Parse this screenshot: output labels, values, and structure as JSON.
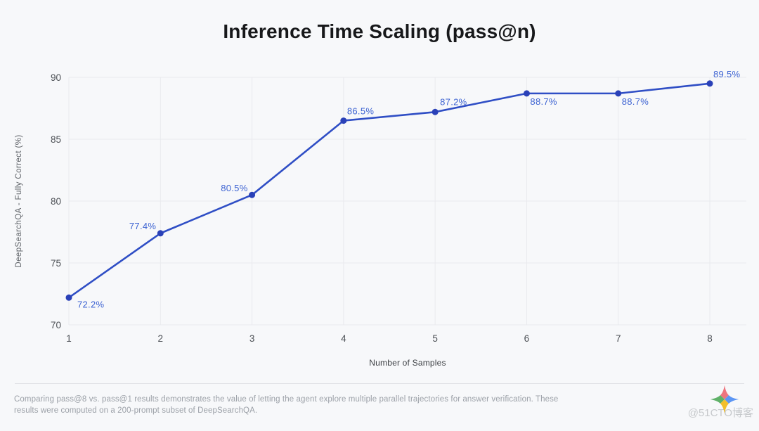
{
  "page": {
    "caption": "Comparing pass@8 vs. pass@1 results demonstrates the value of letting the agent explore multiple parallel trajectories for answer verification. These results were computed on a 200-prompt subset of DeepSearchQA.",
    "watermark_text": "@51CTO博客",
    "watermark_logo": "sparkle-gradient-logo",
    "background_color": "#f7f8fa"
  },
  "chart_data": {
    "type": "line",
    "title": "Inference Time Scaling (pass@n)",
    "xlabel": "Number of Samples",
    "ylabel": "DeepSearchQA - Fully Correct (%)",
    "x": [
      1,
      2,
      3,
      4,
      5,
      6,
      7,
      8
    ],
    "values": [
      72.2,
      77.4,
      80.5,
      86.5,
      87.2,
      88.7,
      88.7,
      89.5
    ],
    "point_labels": [
      "72.2%",
      "77.4%",
      "80.5%",
      "86.5%",
      "87.2%",
      "88.7%",
      "88.7%",
      "89.5%"
    ],
    "xticks": [
      "1",
      "2",
      "3",
      "4",
      "5",
      "6",
      "7",
      "8"
    ],
    "yticks": [
      70,
      75,
      80,
      85,
      90
    ],
    "ylim": [
      70,
      90
    ],
    "xlim": [
      1,
      8.4
    ],
    "grid": true,
    "legend": "none",
    "line_color": "#2f4ec5",
    "point_color": "#2a41b8",
    "point_label_color": "#3d63d2",
    "tick_color": "#4d5156",
    "grid_color": "#e9eaee"
  }
}
